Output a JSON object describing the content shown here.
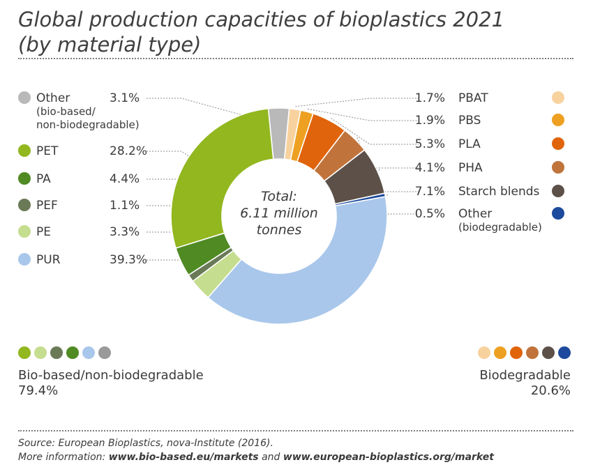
{
  "title_line1": "Global production capacities of bioplastics 2021",
  "title_line2": "(by material type)",
  "chart_data": {
    "type": "pie",
    "title": "Global production capacities of bioplastics 2021 (by material type)",
    "center_label": [
      "Total:",
      "6.11 million",
      "tonnes"
    ],
    "unit": "%",
    "slices": [
      {
        "name": "Other",
        "sub": [
          "(bio-based/",
          "non-biodegradable)"
        ],
        "value": 3.1,
        "label": "3.1%",
        "color": "#b9b9b9",
        "side": "left"
      },
      {
        "name": "PBAT",
        "sub": [],
        "value": 1.7,
        "label": "1.7%",
        "color": "#f8d29e",
        "side": "right"
      },
      {
        "name": "PBS",
        "sub": [],
        "value": 1.9,
        "label": "1.9%",
        "color": "#eda021",
        "side": "right"
      },
      {
        "name": "PLA",
        "sub": [],
        "value": 5.3,
        "label": "5.3%",
        "color": "#e0640c",
        "side": "right"
      },
      {
        "name": "PHA",
        "sub": [],
        "value": 4.1,
        "label": "4.1%",
        "color": "#c0743b",
        "side": "right"
      },
      {
        "name": "Starch blends",
        "sub": [],
        "value": 7.1,
        "label": "7.1%",
        "color": "#5c5048",
        "side": "right"
      },
      {
        "name": "Other",
        "sub": [
          "(biodegradable)"
        ],
        "value": 0.5,
        "label": "0.5%",
        "color": "#1d4a9c",
        "side": "right"
      },
      {
        "name": "PUR",
        "sub": [],
        "value": 39.3,
        "label": "39.3%",
        "color": "#a9c7ea",
        "side": "left"
      },
      {
        "name": "PE",
        "sub": [],
        "value": 3.3,
        "label": "3.3%",
        "color": "#c5dd8f",
        "side": "left"
      },
      {
        "name": "PEF",
        "sub": [],
        "value": 1.1,
        "label": "1.1%",
        "color": "#6a7a57",
        "side": "left"
      },
      {
        "name": "PA",
        "sub": [],
        "value": 4.4,
        "label": "4.4%",
        "color": "#4f8a23",
        "side": "left"
      },
      {
        "name": "PET",
        "sub": [],
        "value": 28.2,
        "label": "28.2%",
        "color": "#92b71f",
        "side": "left"
      }
    ],
    "left_order": [
      "Other",
      "PET",
      "PA",
      "PEF",
      "PE",
      "PUR"
    ],
    "groups": [
      {
        "name": "Bio-based/non-biodegradable",
        "value": "79.4%",
        "colors": [
          "#92b71f",
          "#c5dd8f",
          "#6a7a57",
          "#4f8a23",
          "#a9c7ea",
          "#9a9a9a"
        ]
      },
      {
        "name": "Biodegradable",
        "value": "20.6%",
        "colors": [
          "#f8d29e",
          "#eda021",
          "#e0640c",
          "#c0743b",
          "#5c5048",
          "#1d4a9c"
        ]
      }
    ]
  },
  "footer": {
    "source": "Source: European Bioplastics, nova-Institute (2016).",
    "more_prefix": "More information: ",
    "link1": "www.bio-based.eu/markets",
    "and": " and ",
    "link2": "www.european-bioplastics.org/market"
  }
}
